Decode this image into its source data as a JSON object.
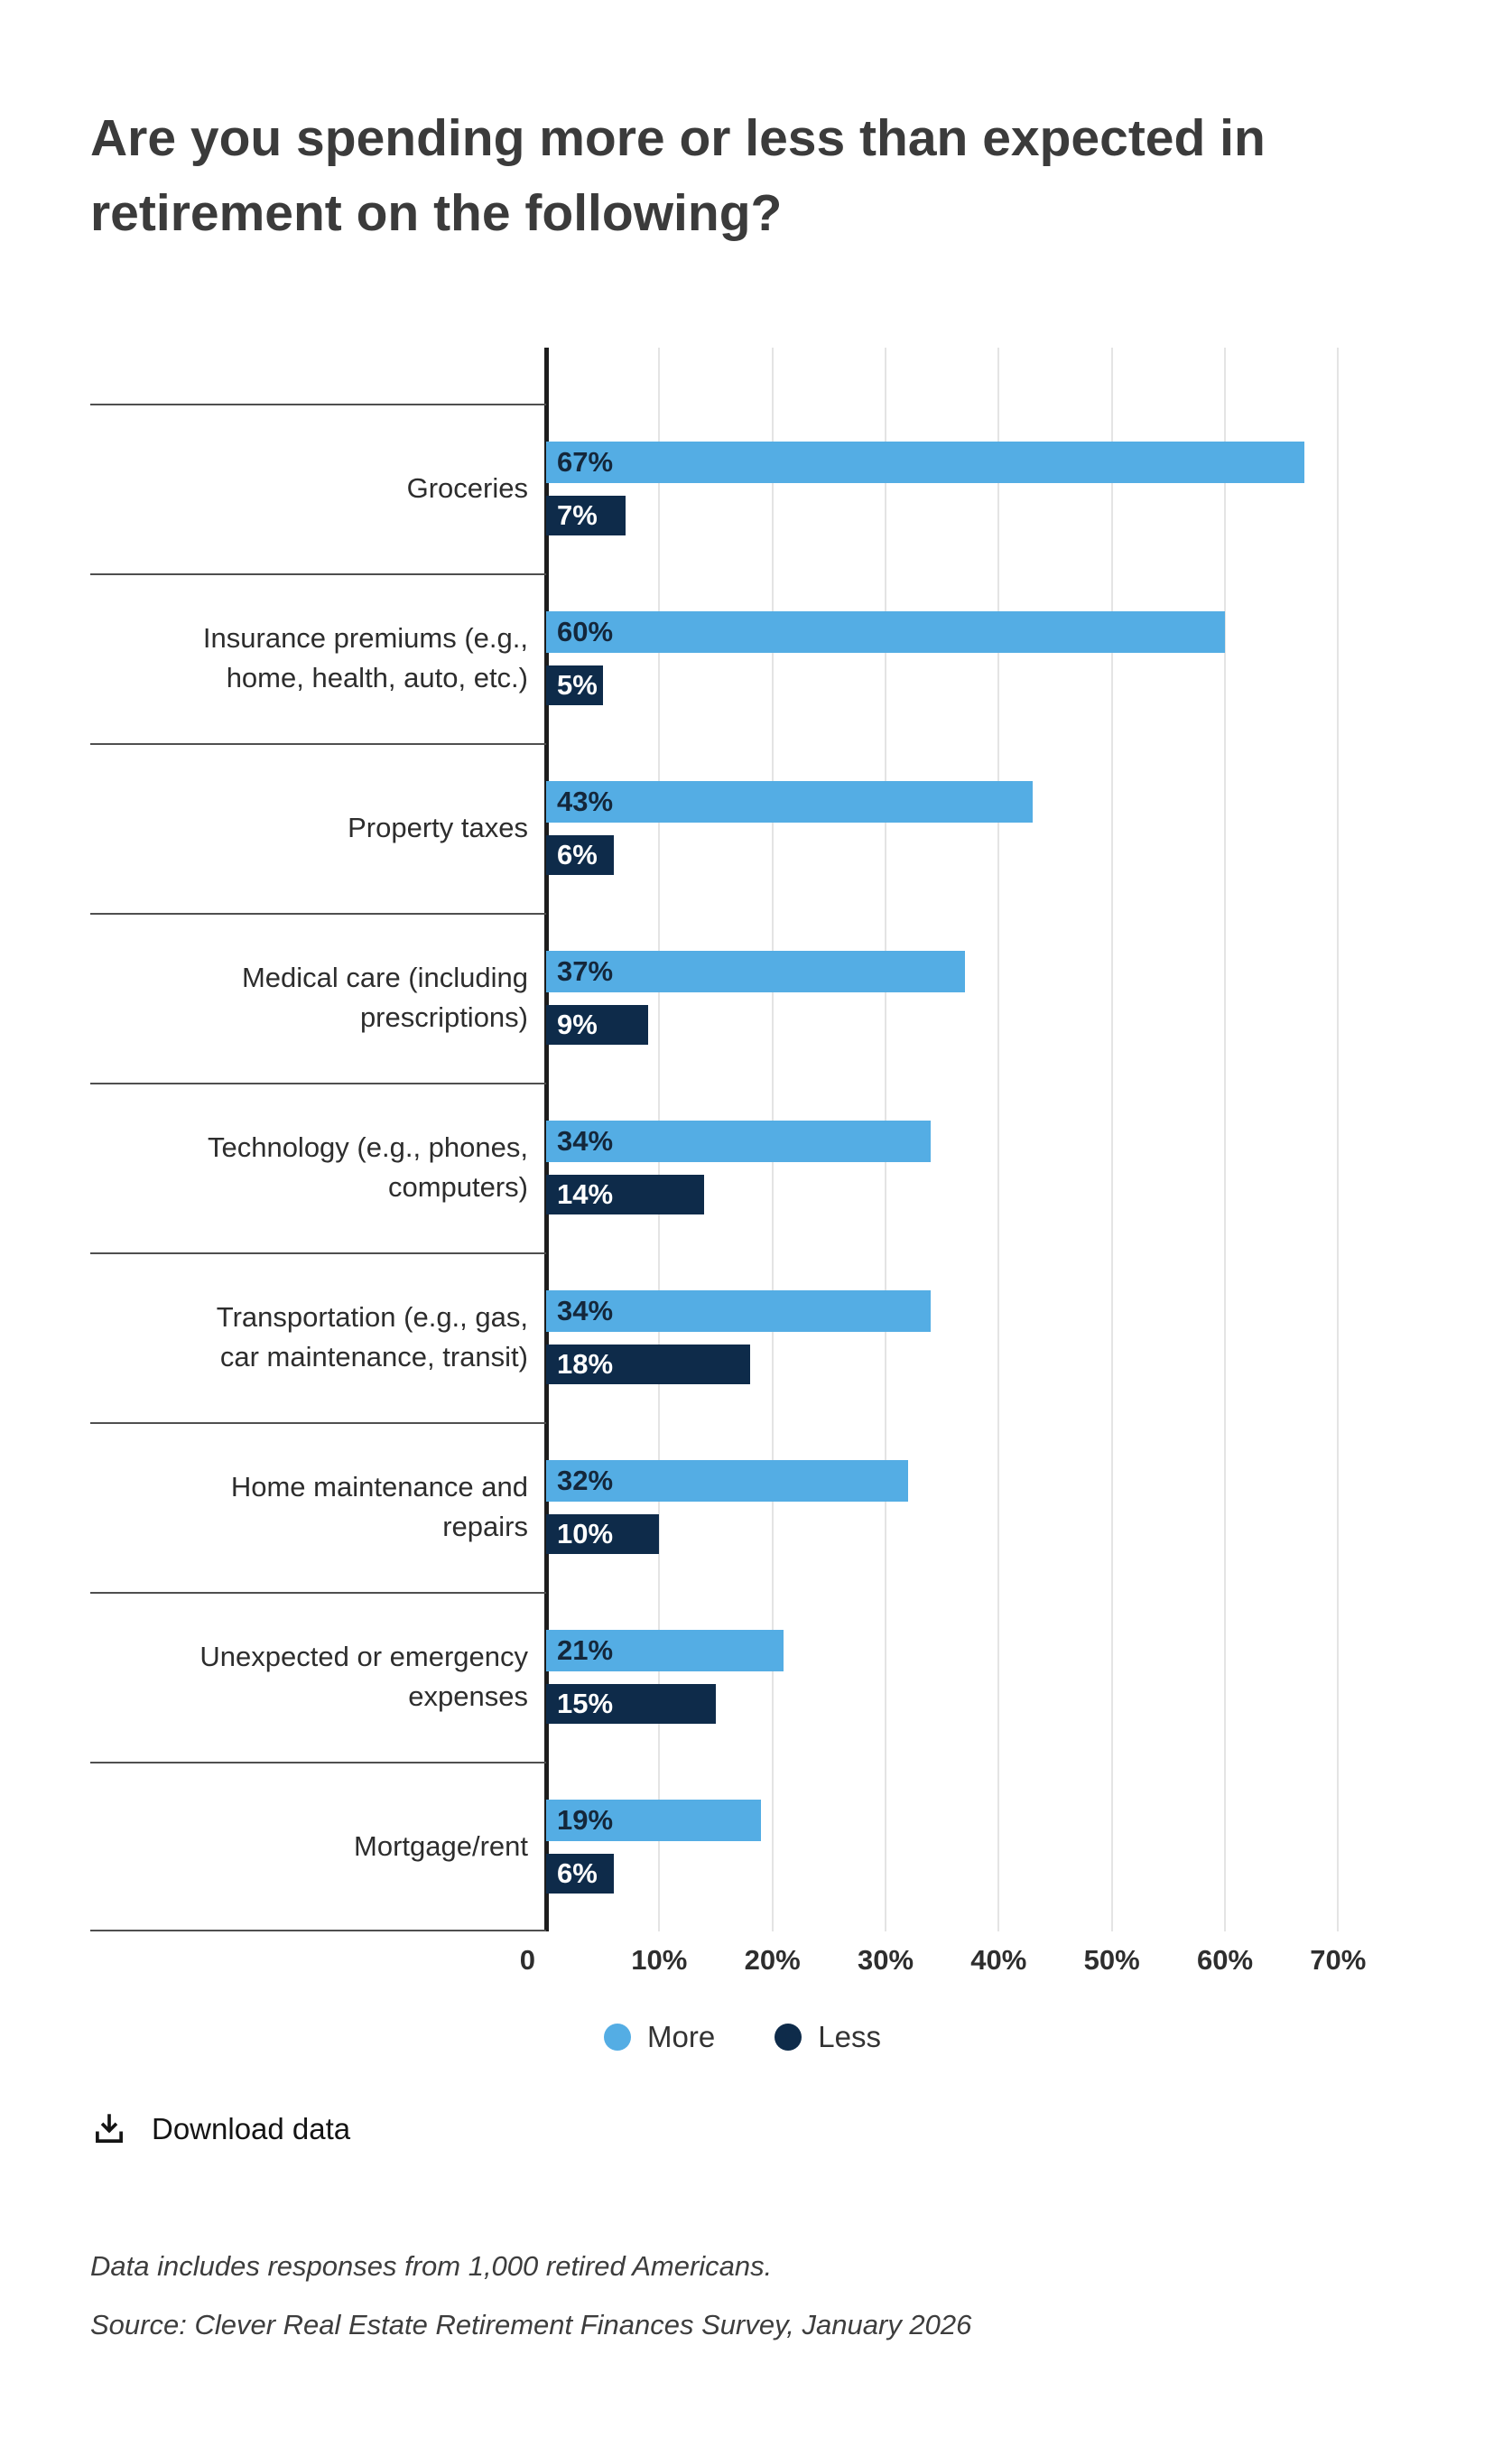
{
  "title": "Are you spending more or less than expected in\nretirement on the following?",
  "chart_data": {
    "type": "bar",
    "orientation": "horizontal",
    "title": "Are you spending more or less than expected in retirement on the following?",
    "categories": [
      "Groceries",
      "Insurance premiums (e.g.,\nhome, health, auto, etc.)",
      "Property taxes",
      "Medical care (including\nprescriptions)",
      "Technology (e.g., phones,\ncomputers)",
      "Transportation (e.g., gas,\ncar maintenance, transit)",
      "Home maintenance and\nrepairs",
      "Unexpected or emergency\nexpenses",
      "Mortgage/rent"
    ],
    "series": [
      {
        "name": "More",
        "color": "#54ADE4",
        "values": [
          67,
          60,
          43,
          37,
          34,
          34,
          32,
          21,
          19
        ]
      },
      {
        "name": "Less",
        "color": "#0E2B4A",
        "values": [
          7,
          5,
          6,
          9,
          14,
          18,
          10,
          15,
          6
        ]
      }
    ],
    "value_suffix": "%",
    "xlim": [
      0,
      75
    ],
    "x_ticks": [
      0,
      10,
      20,
      30,
      40,
      50,
      60,
      70
    ],
    "x_tick_labels": [
      "0",
      "10%",
      "20%",
      "30%",
      "40%",
      "50%",
      "60%",
      "70%"
    ],
    "grid": true,
    "legend_position": "bottom"
  },
  "legend": {
    "items": [
      {
        "label": "More",
        "color": "#54ADE4"
      },
      {
        "label": "Less",
        "color": "#0E2B4A"
      }
    ]
  },
  "download": {
    "label": "Download data"
  },
  "footnotes": {
    "line1": "Data includes responses from 1,000 retired Americans.",
    "line2": "Source: Clever Real Estate Retirement Finances Survey, January 2026"
  },
  "colors": {
    "more": "#54ADE4",
    "less": "#0E2B4A",
    "grid": "#E4E4E4",
    "axis": "#1D1D1D"
  }
}
